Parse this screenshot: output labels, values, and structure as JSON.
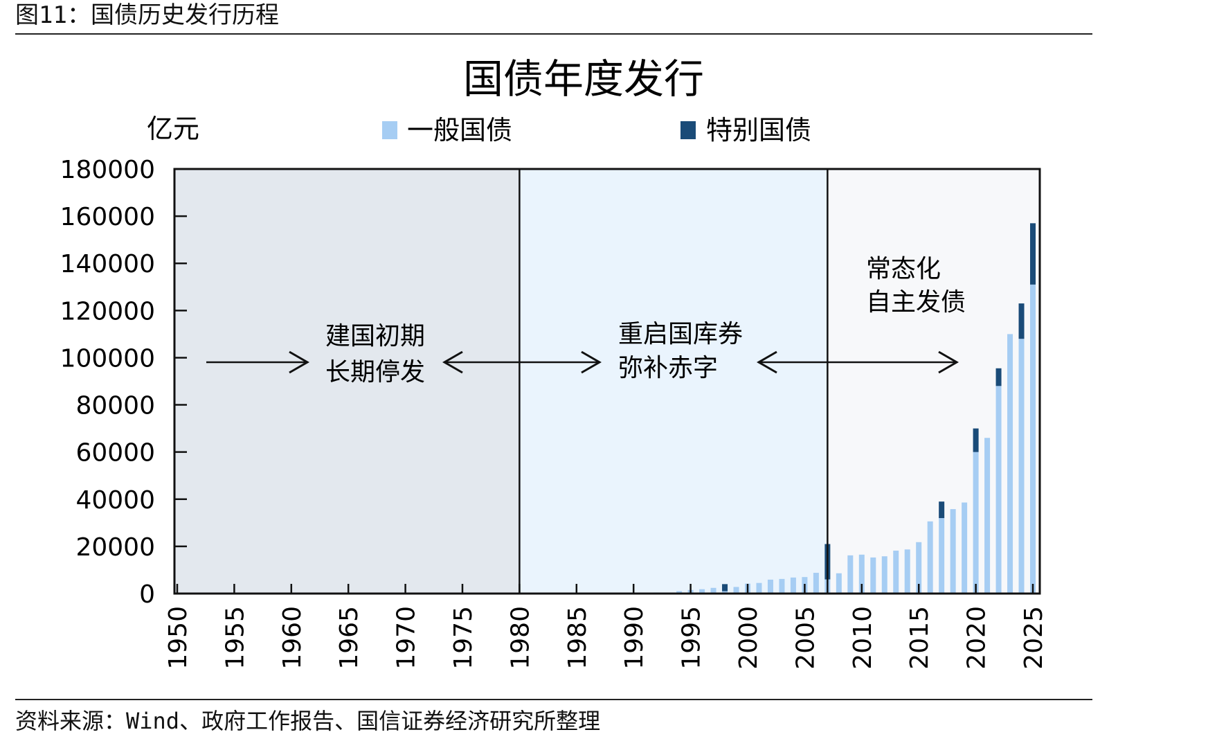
{
  "figure": {
    "label": "图11：国债历史发行历程",
    "source": "资料来源：Wind、政府工作报告、国信证券经济研究所整理"
  },
  "chart_data": {
    "type": "bar",
    "stacked": true,
    "title": "国债年度发行",
    "ylabel": "亿元",
    "xlabel": "",
    "ylim": [
      0,
      180000
    ],
    "xlim": [
      1950,
      2025
    ],
    "y_ticks": [
      "0",
      "20000",
      "40000",
      "60000",
      "80000",
      "100000",
      "120000",
      "140000",
      "160000",
      "180000"
    ],
    "x_ticks": [
      "1950",
      "1955",
      "1960",
      "1965",
      "1970",
      "1975",
      "1980",
      "1985",
      "1990",
      "1995",
      "2000",
      "2005",
      "2010",
      "2015",
      "2020",
      "2025"
    ],
    "legend": {
      "position": "top"
    },
    "colors": {
      "一般国债": "#a6cdf3",
      "特别国债": "#1a4b78",
      "period1_bg": "#e3e8ee",
      "period2_bg": "#eaf4fd",
      "period3_bg": "#f7f8fa"
    },
    "periods": [
      {
        "from": 1950,
        "to": 1980,
        "label_lines": [
          "建国初期",
          "长期停发"
        ],
        "color_key": "period1_bg"
      },
      {
        "from": 1980,
        "to": 2007,
        "label_lines": [
          "重启国库券",
          "弥补赤字"
        ],
        "color_key": "period2_bg"
      },
      {
        "from": 2007,
        "to": 2025,
        "label_lines": [
          "常态化",
          "自主发债"
        ],
        "color_key": "period3_bg"
      }
    ],
    "series": [
      {
        "name": "一般国债",
        "x": [
          1981,
          1982,
          1983,
          1984,
          1985,
          1986,
          1987,
          1988,
          1989,
          1990,
          1991,
          1992,
          1993,
          1994,
          1995,
          1996,
          1997,
          1998,
          1999,
          2000,
          2001,
          2002,
          2003,
          2004,
          2005,
          2006,
          2007,
          2008,
          2009,
          2010,
          2011,
          2012,
          2013,
          2014,
          2015,
          2016,
          2017,
          2018,
          2019,
          2020,
          2021,
          2022,
          2023,
          2024,
          2025
        ],
        "values": [
          50,
          50,
          50,
          50,
          60,
          60,
          120,
          130,
          140,
          200,
          300,
          460,
          380,
          1030,
          1510,
          1850,
          2410,
          1000,
          2800,
          4200,
          4500,
          5900,
          6200,
          6800,
          7000,
          8800,
          6000,
          8600,
          16200,
          16500,
          15300,
          15800,
          18200,
          18700,
          21800,
          30600,
          32000,
          35800,
          38600,
          60000,
          66000,
          88000,
          110000,
          108000,
          131000
        ]
      },
      {
        "name": "特别国债",
        "x": [
          1998,
          2007,
          2017,
          2020,
          2022,
          2024,
          2025
        ],
        "values": [
          3000,
          15000,
          7000,
          10000,
          7500,
          15000,
          26000
        ]
      }
    ]
  }
}
